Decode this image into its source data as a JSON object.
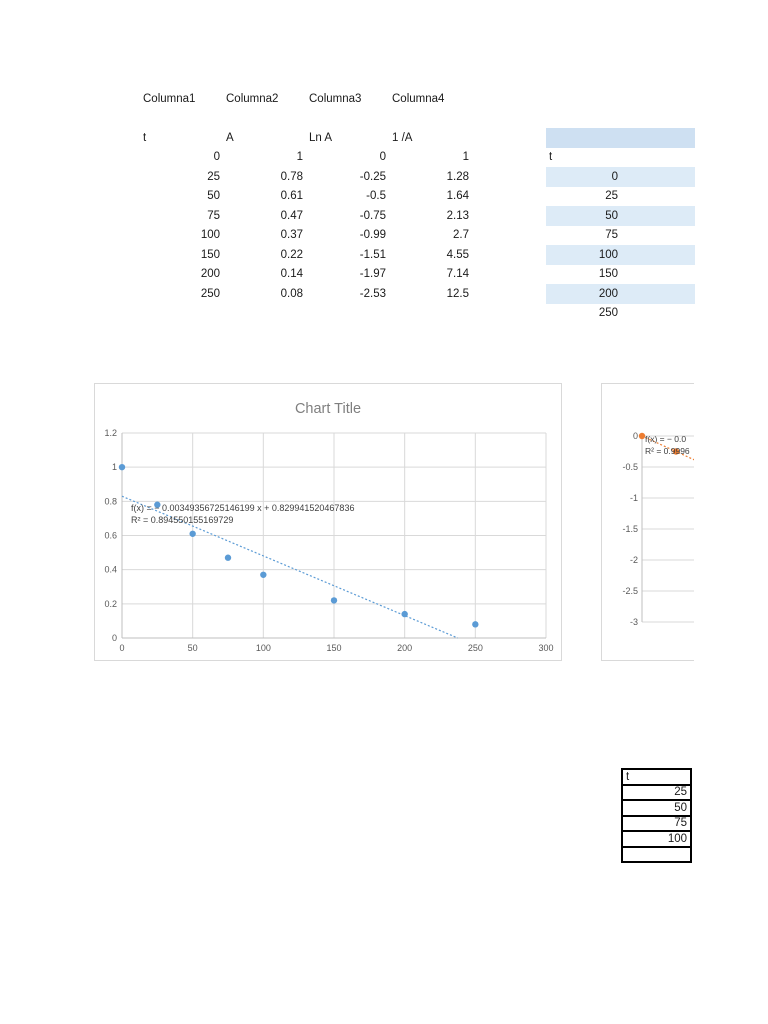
{
  "colors": {
    "stripe_blue": "#DDEBF7",
    "header_blue": "#CEE0F2",
    "marker_blue": "#5B9BD5",
    "marker_orange": "#ED7D31",
    "trendline_blue": "#5B9BD5",
    "gridline": "#D9D9D9",
    "axis_line": "#BFBFBF",
    "chart_border": "#D9D9D9",
    "chart_title": "#7F7F7F",
    "tick_text": "#595959",
    "equation_text": "#404040",
    "cell_text": "#1A1A1A"
  },
  "top_table": {
    "headers": [
      "Columna1",
      "Columna2",
      "Columna3",
      "Columna4"
    ],
    "col_labels": [
      "t",
      "A",
      "Ln A",
      "1 /A"
    ],
    "rows": [
      [
        "0",
        "1",
        "0",
        "1"
      ],
      [
        "25",
        "0.78",
        "-0.25",
        "1.28"
      ],
      [
        "50",
        "0.61",
        "-0.5",
        "1.64"
      ],
      [
        "75",
        "0.47",
        "-0.75",
        "2.13"
      ],
      [
        "100",
        "0.37",
        "-0.99",
        "2.7"
      ],
      [
        "150",
        "0.22",
        "-1.51",
        "4.55"
      ],
      [
        "200",
        "0.14",
        "-1.97",
        "7.14"
      ],
      [
        "250",
        "0.08",
        "-2.53",
        "12.5"
      ]
    ]
  },
  "right_table": {
    "first_cell": "t",
    "values": [
      "0",
      "25",
      "50",
      "75",
      "100",
      "150",
      "200",
      "250"
    ]
  },
  "bottom_table": {
    "first_cell": "t",
    "values": [
      "25",
      "50",
      "75",
      "100",
      ""
    ]
  },
  "chart_data": [
    {
      "type": "scatter",
      "title": "Chart Title",
      "x": [
        0,
        25,
        50,
        75,
        100,
        150,
        200,
        250
      ],
      "y": [
        1,
        0.78,
        0.61,
        0.47,
        0.37,
        0.22,
        0.14,
        0.08
      ],
      "xlim": [
        0,
        300
      ],
      "ylim": [
        0,
        1.2
      ],
      "x_ticks": [
        "0",
        "50",
        "100",
        "150",
        "200",
        "250",
        "300"
      ],
      "y_ticks": [
        "0",
        "0.2",
        "0.4",
        "0.6",
        "0.8",
        "1",
        "1.2"
      ],
      "grid": true,
      "legend": "none",
      "trendline": {
        "slope": -0.00349356725146199,
        "intercept": 0.829941520467836,
        "style": "dotted"
      },
      "equation_line1": "f(x) = − 0.00349356725146199 x + 0.829941520467836",
      "equation_line2": "R² = 0.894550155169729"
    },
    {
      "type": "scatter",
      "title": "",
      "x": [
        0,
        25
      ],
      "y": [
        0,
        -0.25
      ],
      "ylim": [
        -3,
        0
      ],
      "y_ticks": [
        "0",
        "-0.5",
        "-1",
        "-1.5",
        "-2",
        "-2.5",
        "-3"
      ],
      "grid": true,
      "clipped_at_right": true,
      "equation_line1": "f(x) = − 0.0",
      "equation_line2": "R² = 0.9996"
    }
  ]
}
